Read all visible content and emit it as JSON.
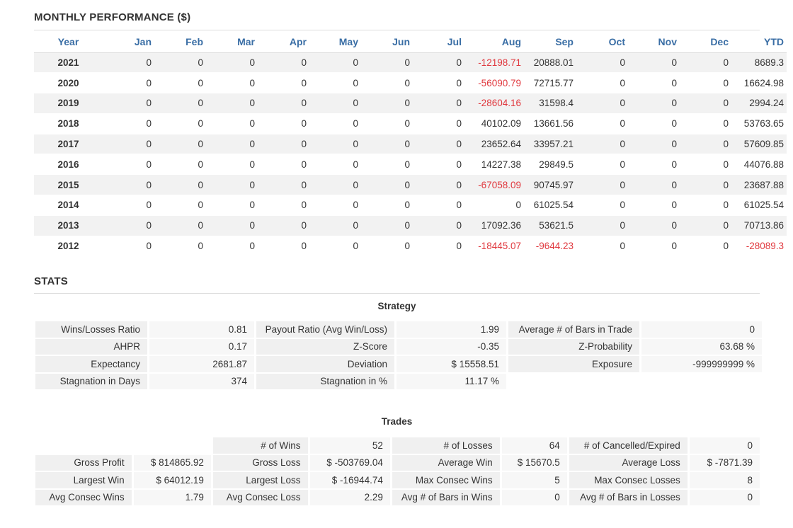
{
  "monthly": {
    "title": "MONTHLY PERFORMANCE ($)",
    "headers": [
      "Year",
      "Jan",
      "Feb",
      "Mar",
      "Apr",
      "May",
      "Jun",
      "Jul",
      "Aug",
      "Sep",
      "Oct",
      "Nov",
      "Dec",
      "YTD"
    ],
    "rows": [
      [
        "2021",
        "0",
        "0",
        "0",
        "0",
        "0",
        "0",
        "0",
        "-12198.71",
        "20888.01",
        "0",
        "0",
        "0",
        "8689.3"
      ],
      [
        "2020",
        "0",
        "0",
        "0",
        "0",
        "0",
        "0",
        "0",
        "-56090.79",
        "72715.77",
        "0",
        "0",
        "0",
        "16624.98"
      ],
      [
        "2019",
        "0",
        "0",
        "0",
        "0",
        "0",
        "0",
        "0",
        "-28604.16",
        "31598.4",
        "0",
        "0",
        "0",
        "2994.24"
      ],
      [
        "2018",
        "0",
        "0",
        "0",
        "0",
        "0",
        "0",
        "0",
        "40102.09",
        "13661.56",
        "0",
        "0",
        "0",
        "53763.65"
      ],
      [
        "2017",
        "0",
        "0",
        "0",
        "0",
        "0",
        "0",
        "0",
        "23652.64",
        "33957.21",
        "0",
        "0",
        "0",
        "57609.85"
      ],
      [
        "2016",
        "0",
        "0",
        "0",
        "0",
        "0",
        "0",
        "0",
        "14227.38",
        "29849.5",
        "0",
        "0",
        "0",
        "44076.88"
      ],
      [
        "2015",
        "0",
        "0",
        "0",
        "0",
        "0",
        "0",
        "0",
        "-67058.09",
        "90745.97",
        "0",
        "0",
        "0",
        "23687.88"
      ],
      [
        "2014",
        "0",
        "0",
        "0",
        "0",
        "0",
        "0",
        "0",
        "0",
        "61025.54",
        "0",
        "0",
        "0",
        "61025.54"
      ],
      [
        "2013",
        "0",
        "0",
        "0",
        "0",
        "0",
        "0",
        "0",
        "17092.36",
        "53621.5",
        "0",
        "0",
        "0",
        "70713.86"
      ],
      [
        "2012",
        "0",
        "0",
        "0",
        "0",
        "0",
        "0",
        "0",
        "-18445.07",
        "-9644.23",
        "0",
        "0",
        "0",
        "-28089.3"
      ]
    ]
  },
  "stats": {
    "title": "STATS",
    "strategy": {
      "title": "Strategy",
      "rows": [
        [
          "Wins/Losses Ratio",
          "0.81",
          "Payout Ratio (Avg Win/Loss)",
          "1.99",
          "Average # of Bars in Trade",
          "0"
        ],
        [
          "AHPR",
          "0.17",
          "Z-Score",
          "-0.35",
          "Z-Probability",
          "63.68 %"
        ],
        [
          "Expectancy",
          "2681.87",
          "Deviation",
          "$ 15558.51",
          "Exposure",
          "-999999999 %"
        ],
        [
          "Stagnation in Days",
          "374",
          "Stagnation in %",
          "11.17 %",
          "",
          ""
        ]
      ]
    },
    "trades": {
      "title": "Trades",
      "rows": [
        [
          "",
          "",
          "# of Wins",
          "52",
          "# of Losses",
          "64",
          "# of Cancelled/Expired",
          "0"
        ],
        [
          "Gross Profit",
          "$ 814865.92",
          "Gross Loss",
          "$ -503769.04",
          "Average Win",
          "$ 15670.5",
          "Average Loss",
          "$ -7871.39"
        ],
        [
          "Largest Win",
          "$ 64012.19",
          "Largest Loss",
          "$ -16944.74",
          "Max Consec Wins",
          "5",
          "Max Consec Losses",
          "8"
        ],
        [
          "Avg Consec Wins",
          "1.79",
          "Avg Consec Loss",
          "2.29",
          "Avg # of Bars in Wins",
          "0",
          "Avg # of Bars in Losses",
          "0"
        ]
      ]
    }
  }
}
